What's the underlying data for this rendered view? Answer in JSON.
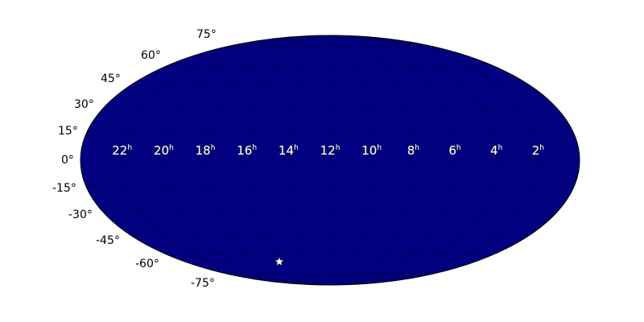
{
  "chart_data": {
    "type": "scatter",
    "projection": "mollweide",
    "background_color": "#000080",
    "grid": true,
    "grid_style": "dotted black",
    "ra_tick_labels": [
      "22h",
      "20h",
      "18h",
      "16h",
      "14h",
      "12h",
      "10h",
      "8h",
      "6h",
      "4h",
      "2h"
    ],
    "ra_ticks_hours": [
      22,
      20,
      18,
      16,
      14,
      12,
      10,
      8,
      6,
      4,
      2
    ],
    "dec_tick_labels": [
      "75°",
      "60°",
      "45°",
      "30°",
      "15°",
      "0°",
      "-15°",
      "-30°",
      "-45°",
      "-60°",
      "-75°"
    ],
    "dec_ticks": [
      75,
      60,
      45,
      30,
      15,
      0,
      -15,
      -30,
      -45,
      -60,
      -75
    ],
    "points": [
      {
        "ra_hours": 16.2,
        "dec": -65,
        "marker": "star",
        "color": "#ffffff"
      }
    ]
  }
}
